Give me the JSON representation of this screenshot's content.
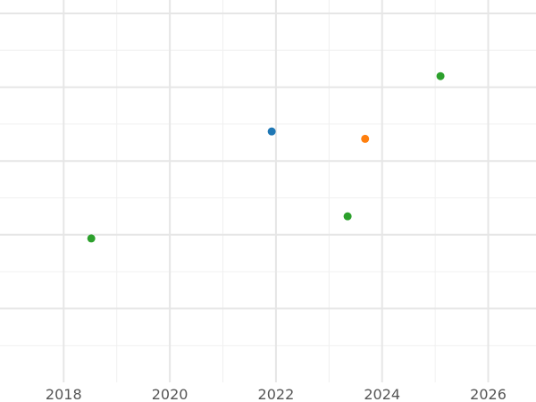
{
  "chart_data": {
    "type": "scatter",
    "title": "",
    "xlabel": "",
    "ylabel": "",
    "x_axis": {
      "range": [
        2016.8,
        2026.9
      ],
      "major_ticks": [
        2018,
        2020,
        2022,
        2024,
        2026
      ],
      "tick_labels": [
        "2018",
        "2020",
        "2022",
        "2024",
        "2026"
      ],
      "minor_ticks": [
        2019,
        2021,
        2023,
        2025
      ]
    },
    "y_axis": {
      "range": [
        0,
        10
      ],
      "major_ticks": [
        2,
        4,
        6,
        8,
        10
      ],
      "minor_ticks": [
        1,
        3,
        5,
        7,
        9
      ],
      "tick_labels_visible": false
    },
    "grid": true,
    "legend": "none",
    "colors": {
      "blue": "#1f77b4",
      "orange": "#ff7f0e",
      "green": "#2ca02c",
      "grid_major": "#e6e6e6",
      "grid_minor": "#f0f0f0",
      "tick_text": "#555555"
    },
    "points": [
      {
        "x": 2018.52,
        "y": 3.9,
        "color": "green"
      },
      {
        "x": 2021.92,
        "y": 6.8,
        "color": "blue"
      },
      {
        "x": 2023.35,
        "y": 4.5,
        "color": "green"
      },
      {
        "x": 2023.68,
        "y": 6.6,
        "color": "orange"
      },
      {
        "x": 2025.1,
        "y": 8.3,
        "color": "green"
      }
    ]
  }
}
